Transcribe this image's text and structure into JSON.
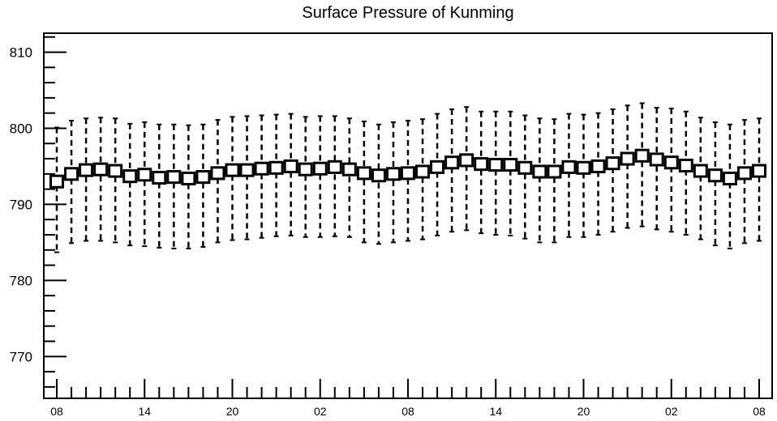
{
  "chart_data": {
    "type": "box",
    "title": "Surface Pressure of Kunming",
    "xlabel": "",
    "ylabel": "",
    "ylim": [
      764.5,
      812.5
    ],
    "y_major_ticks": [
      770,
      780,
      790,
      800,
      810
    ],
    "y_minor_step": 2,
    "x_tick_labels": [
      "08",
      "14",
      "20",
      "02",
      "08",
      "14",
      "20",
      "02",
      "08"
    ],
    "x_tick_every": 6,
    "x_count": 49,
    "box_half_height": 0.75,
    "center": [
      793.0,
      794.0,
      794.5,
      794.6,
      794.4,
      793.7,
      793.9,
      793.5,
      793.6,
      793.4,
      793.6,
      794.1,
      794.5,
      794.5,
      794.7,
      794.8,
      795.0,
      794.6,
      794.7,
      794.9,
      794.6,
      794.1,
      793.8,
      794.0,
      794.1,
      794.3,
      794.9,
      795.5,
      795.8,
      795.3,
      795.2,
      795.2,
      794.8,
      794.3,
      794.3,
      794.9,
      794.8,
      795.0,
      795.4,
      796.0,
      796.4,
      795.9,
      795.5,
      795.1,
      794.4,
      793.8,
      793.4,
      794.1,
      794.4
    ],
    "whisker_low": [
      783.7,
      784.9,
      785.2,
      785.2,
      785.0,
      784.6,
      784.5,
      784.3,
      784.2,
      784.2,
      784.4,
      785.0,
      785.3,
      785.4,
      785.6,
      785.8,
      785.9,
      785.7,
      785.7,
      785.8,
      785.7,
      785.0,
      784.8,
      785.0,
      785.2,
      785.4,
      785.9,
      786.4,
      786.6,
      786.2,
      786.0,
      785.9,
      785.5,
      785.0,
      785.0,
      785.7,
      785.7,
      786.0,
      786.4,
      786.9,
      787.1,
      786.7,
      786.4,
      786.0,
      785.4,
      784.6,
      784.2,
      784.9,
      785.2
    ],
    "whisker_high": [
      800.1,
      801.0,
      801.3,
      801.4,
      801.3,
      800.6,
      800.8,
      800.5,
      800.5,
      800.4,
      800.5,
      801.1,
      801.5,
      801.6,
      801.7,
      801.8,
      801.9,
      801.5,
      801.6,
      801.6,
      801.3,
      800.9,
      800.5,
      800.8,
      801.0,
      801.2,
      801.9,
      802.5,
      802.8,
      802.2,
      802.2,
      802.2,
      801.7,
      801.3,
      801.2,
      801.9,
      801.8,
      802.0,
      802.5,
      803.0,
      803.3,
      802.7,
      802.6,
      802.2,
      801.4,
      800.8,
      800.5,
      801.1,
      801.3
    ]
  }
}
